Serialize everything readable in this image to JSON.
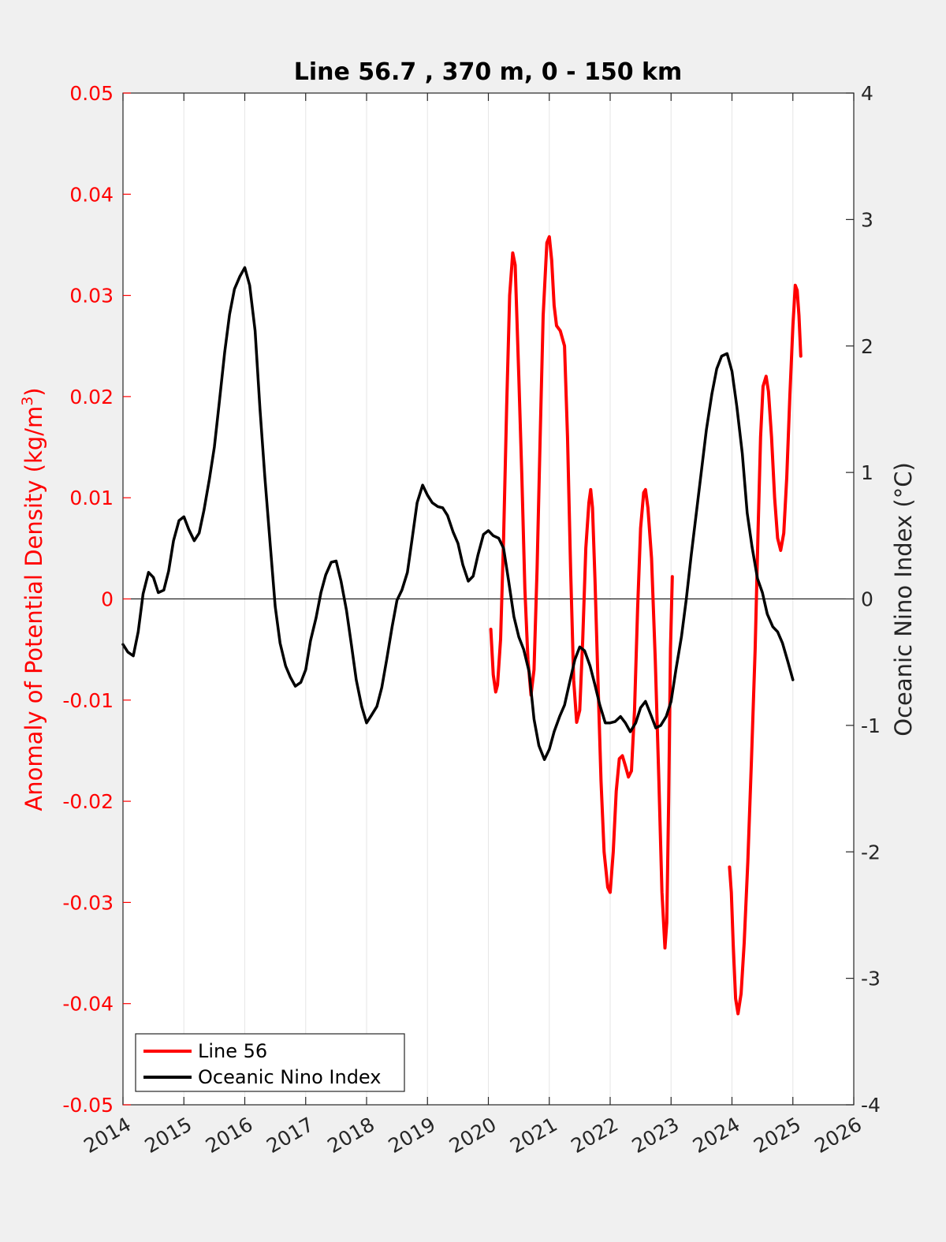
{
  "chart_data": {
    "type": "line",
    "title": "Line 56.7 , 370 m, 0 - 150 km",
    "xlabel": "",
    "xlim": [
      2014,
      2026
    ],
    "x_ticks": [
      "2014",
      "2015",
      "2016",
      "2017",
      "2018",
      "2019",
      "2020",
      "2021",
      "2022",
      "2023",
      "2024",
      "2025",
      "2026"
    ],
    "ylabel_left": "Anomaly of Potential Density (kg/m",
    "ylabel_left_sup": "3",
    "ylabel_left_close": ")",
    "ylim_left": [
      -0.05,
      0.05
    ],
    "y_ticks_left": [
      "-0.05",
      "-0.04",
      "-0.03",
      "-0.02",
      "-0.01",
      "0",
      "0.01",
      "0.02",
      "0.03",
      "0.04",
      "0.05"
    ],
    "ylabel_right": "Oceanic Nino Index (°C)",
    "ylim_right": [
      -4,
      4
    ],
    "y_ticks_right": [
      "-4",
      "-3",
      "-2",
      "-1",
      "0",
      "1",
      "2",
      "3",
      "4"
    ],
    "grid": "vertical",
    "zero_line": true,
    "legend_position": "bottom-left",
    "colors": {
      "line56": "#ff0000",
      "oni": "#000000",
      "axis_left": "#ff0000",
      "axis_right": "#262626",
      "grid": "#e6e6e6"
    },
    "series": [
      {
        "name": "Line 56",
        "axis": "left",
        "color": "#ff0000",
        "segments": [
          [
            [
              2020.04,
              -0.003
            ],
            [
              2020.08,
              -0.0075
            ],
            [
              2020.12,
              -0.0092
            ],
            [
              2020.15,
              -0.0085
            ],
            [
              2020.2,
              -0.004
            ],
            [
              2020.25,
              0.006
            ],
            [
              2020.3,
              0.019
            ],
            [
              2020.35,
              0.03
            ],
            [
              2020.4,
              0.0342
            ],
            [
              2020.44,
              0.033
            ],
            [
              2020.5,
              0.022
            ],
            [
              2020.55,
              0.012
            ],
            [
              2020.6,
              0.001
            ],
            [
              2020.65,
              -0.006
            ],
            [
              2020.7,
              -0.0095
            ],
            [
              2020.75,
              -0.007
            ],
            [
              2020.8,
              0.003
            ],
            [
              2020.85,
              0.016
            ],
            [
              2020.9,
              0.028
            ],
            [
              2020.96,
              0.0352
            ],
            [
              2021.0,
              0.0358
            ],
            [
              2021.04,
              0.0335
            ],
            [
              2021.08,
              0.029
            ],
            [
              2021.12,
              0.027
            ],
            [
              2021.18,
              0.0265
            ],
            [
              2021.25,
              0.025
            ],
            [
              2021.3,
              0.016
            ],
            [
              2021.35,
              0.003
            ],
            [
              2021.4,
              -0.008
            ],
            [
              2021.45,
              -0.0122
            ],
            [
              2021.5,
              -0.011
            ],
            [
              2021.55,
              -0.004
            ],
            [
              2021.6,
              0.005
            ],
            [
              2021.65,
              0.0095
            ],
            [
              2021.68,
              0.0108
            ],
            [
              2021.71,
              0.009
            ],
            [
              2021.75,
              0.002
            ],
            [
              2021.8,
              -0.008
            ],
            [
              2021.85,
              -0.018
            ],
            [
              2021.9,
              -0.025
            ],
            [
              2021.96,
              -0.0285
            ],
            [
              2022.0,
              -0.029
            ],
            [
              2022.05,
              -0.025
            ],
            [
              2022.1,
              -0.019
            ],
            [
              2022.15,
              -0.0158
            ],
            [
              2022.2,
              -0.0155
            ],
            [
              2022.25,
              -0.0165
            ],
            [
              2022.3,
              -0.0176
            ],
            [
              2022.35,
              -0.017
            ],
            [
              2022.4,
              -0.011
            ],
            [
              2022.45,
              -0.001
            ],
            [
              2022.5,
              0.007
            ],
            [
              2022.55,
              0.0105
            ],
            [
              2022.58,
              0.0108
            ],
            [
              2022.62,
              0.009
            ],
            [
              2022.68,
              0.004
            ],
            [
              2022.74,
              -0.006
            ],
            [
              2022.8,
              -0.018
            ],
            [
              2022.85,
              -0.029
            ],
            [
              2022.9,
              -0.0345
            ],
            [
              2022.93,
              -0.032
            ],
            [
              2022.96,
              -0.02
            ],
            [
              2022.99,
              -0.005
            ],
            [
              2023.02,
              0.0022
            ]
          ],
          [
            [
              2023.96,
              -0.0265
            ],
            [
              2023.99,
              -0.029
            ],
            [
              2024.02,
              -0.034
            ],
            [
              2024.06,
              -0.0395
            ],
            [
              2024.1,
              -0.041
            ],
            [
              2024.15,
              -0.039
            ],
            [
              2024.2,
              -0.034
            ],
            [
              2024.26,
              -0.026
            ],
            [
              2024.32,
              -0.016
            ],
            [
              2024.38,
              -0.005
            ],
            [
              2024.43,
              0.007
            ],
            [
              2024.47,
              0.016
            ],
            [
              2024.51,
              0.021
            ],
            [
              2024.56,
              0.022
            ],
            [
              2024.6,
              0.0205
            ],
            [
              2024.65,
              0.016
            ],
            [
              2024.7,
              0.01
            ],
            [
              2024.75,
              0.006
            ],
            [
              2024.8,
              0.0048
            ],
            [
              2024.85,
              0.0065
            ],
            [
              2024.9,
              0.012
            ],
            [
              2024.95,
              0.02
            ],
            [
              2025.0,
              0.027
            ],
            [
              2025.04,
              0.031
            ],
            [
              2025.07,
              0.0305
            ],
            [
              2025.1,
              0.028
            ],
            [
              2025.13,
              0.024
            ]
          ]
        ]
      },
      {
        "name": "Oceanic Nino Index",
        "axis": "right",
        "color": "#000000",
        "points": [
          [
            2014.0,
            -0.36
          ],
          [
            2014.08,
            -0.42
          ],
          [
            2014.17,
            -0.45
          ],
          [
            2014.25,
            -0.26
          ],
          [
            2014.33,
            0.04
          ],
          [
            2014.42,
            0.21
          ],
          [
            2014.5,
            0.17
          ],
          [
            2014.58,
            0.05
          ],
          [
            2014.67,
            0.07
          ],
          [
            2014.75,
            0.22
          ],
          [
            2014.83,
            0.46
          ],
          [
            2014.92,
            0.62
          ],
          [
            2015.0,
            0.65
          ],
          [
            2015.08,
            0.55
          ],
          [
            2015.17,
            0.46
          ],
          [
            2015.25,
            0.52
          ],
          [
            2015.33,
            0.7
          ],
          [
            2015.42,
            0.95
          ],
          [
            2015.5,
            1.2
          ],
          [
            2015.58,
            1.55
          ],
          [
            2015.67,
            1.95
          ],
          [
            2015.75,
            2.25
          ],
          [
            2015.83,
            2.45
          ],
          [
            2015.92,
            2.55
          ],
          [
            2016.0,
            2.62
          ],
          [
            2016.08,
            2.48
          ],
          [
            2016.17,
            2.12
          ],
          [
            2016.25,
            1.5
          ],
          [
            2016.33,
            0.96
          ],
          [
            2016.42,
            0.42
          ],
          [
            2016.5,
            -0.06
          ],
          [
            2016.58,
            -0.35
          ],
          [
            2016.67,
            -0.53
          ],
          [
            2016.75,
            -0.62
          ],
          [
            2016.83,
            -0.69
          ],
          [
            2016.92,
            -0.66
          ],
          [
            2017.0,
            -0.56
          ],
          [
            2017.08,
            -0.33
          ],
          [
            2017.17,
            -0.15
          ],
          [
            2017.25,
            0.05
          ],
          [
            2017.33,
            0.19
          ],
          [
            2017.42,
            0.29
          ],
          [
            2017.5,
            0.3
          ],
          [
            2017.58,
            0.14
          ],
          [
            2017.67,
            -0.09
          ],
          [
            2017.75,
            -0.36
          ],
          [
            2017.83,
            -0.64
          ],
          [
            2017.92,
            -0.85
          ],
          [
            2018.0,
            -0.98
          ],
          [
            2018.08,
            -0.92
          ],
          [
            2018.17,
            -0.85
          ],
          [
            2018.25,
            -0.7
          ],
          [
            2018.33,
            -0.48
          ],
          [
            2018.42,
            -0.22
          ],
          [
            2018.5,
            -0.01
          ],
          [
            2018.58,
            0.07
          ],
          [
            2018.67,
            0.21
          ],
          [
            2018.75,
            0.48
          ],
          [
            2018.83,
            0.76
          ],
          [
            2018.92,
            0.9
          ],
          [
            2019.0,
            0.82
          ],
          [
            2019.08,
            0.76
          ],
          [
            2019.17,
            0.73
          ],
          [
            2019.25,
            0.72
          ],
          [
            2019.33,
            0.66
          ],
          [
            2019.42,
            0.53
          ],
          [
            2019.5,
            0.44
          ],
          [
            2019.58,
            0.27
          ],
          [
            2019.67,
            0.14
          ],
          [
            2019.75,
            0.18
          ],
          [
            2019.83,
            0.35
          ],
          [
            2019.92,
            0.51
          ],
          [
            2020.0,
            0.54
          ],
          [
            2020.08,
            0.5
          ],
          [
            2020.17,
            0.48
          ],
          [
            2020.25,
            0.4
          ],
          [
            2020.33,
            0.15
          ],
          [
            2020.42,
            -0.14
          ],
          [
            2020.5,
            -0.3
          ],
          [
            2020.58,
            -0.4
          ],
          [
            2020.67,
            -0.58
          ],
          [
            2020.75,
            -0.95
          ],
          [
            2020.83,
            -1.16
          ],
          [
            2020.92,
            -1.27
          ],
          [
            2021.0,
            -1.19
          ],
          [
            2021.08,
            -1.05
          ],
          [
            2021.17,
            -0.93
          ],
          [
            2021.25,
            -0.84
          ],
          [
            2021.33,
            -0.67
          ],
          [
            2021.42,
            -0.48
          ],
          [
            2021.5,
            -0.38
          ],
          [
            2021.58,
            -0.41
          ],
          [
            2021.67,
            -0.53
          ],
          [
            2021.75,
            -0.68
          ],
          [
            2021.83,
            -0.84
          ],
          [
            2021.92,
            -0.98
          ],
          [
            2022.0,
            -0.98
          ],
          [
            2022.08,
            -0.97
          ],
          [
            2022.17,
            -0.93
          ],
          [
            2022.25,
            -0.98
          ],
          [
            2022.33,
            -1.05
          ],
          [
            2022.42,
            -0.98
          ],
          [
            2022.5,
            -0.86
          ],
          [
            2022.58,
            -0.81
          ],
          [
            2022.67,
            -0.92
          ],
          [
            2022.75,
            -1.02
          ],
          [
            2022.83,
            -1.0
          ],
          [
            2022.92,
            -0.93
          ],
          [
            2023.0,
            -0.81
          ],
          [
            2023.08,
            -0.56
          ],
          [
            2023.17,
            -0.3
          ],
          [
            2023.25,
            0.0
          ],
          [
            2023.33,
            0.34
          ],
          [
            2023.42,
            0.7
          ],
          [
            2023.5,
            1.02
          ],
          [
            2023.58,
            1.34
          ],
          [
            2023.67,
            1.62
          ],
          [
            2023.75,
            1.82
          ],
          [
            2023.83,
            1.92
          ],
          [
            2023.92,
            1.94
          ],
          [
            2024.0,
            1.8
          ],
          [
            2024.08,
            1.52
          ],
          [
            2024.17,
            1.15
          ],
          [
            2024.25,
            0.68
          ],
          [
            2024.33,
            0.41
          ],
          [
            2024.42,
            0.16
          ],
          [
            2024.5,
            0.05
          ],
          [
            2024.58,
            -0.12
          ],
          [
            2024.67,
            -0.22
          ],
          [
            2024.75,
            -0.26
          ],
          [
            2024.83,
            -0.35
          ],
          [
            2024.92,
            -0.5
          ],
          [
            2025.0,
            -0.64
          ]
        ]
      }
    ]
  }
}
